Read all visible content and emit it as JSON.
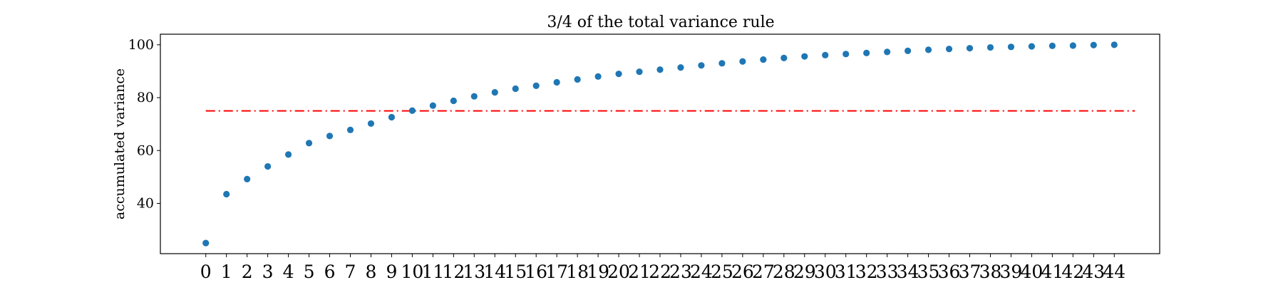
{
  "chart_data": {
    "type": "scatter",
    "title": "3/4 of the total variance rule",
    "xlabel": "",
    "ylabel": "accumulated variance",
    "x": [
      0,
      1,
      2,
      3,
      4,
      5,
      6,
      7,
      8,
      9,
      10,
      11,
      12,
      13,
      14,
      15,
      16,
      17,
      18,
      19,
      20,
      21,
      22,
      23,
      24,
      25,
      26,
      27,
      28,
      29,
      30,
      31,
      32,
      33,
      34,
      35,
      36,
      37,
      38,
      39,
      40,
      41,
      42,
      43,
      44
    ],
    "y": [
      25.0,
      43.5,
      49.2,
      54.0,
      58.5,
      62.8,
      65.5,
      67.8,
      70.2,
      72.6,
      75.1,
      77.0,
      78.8,
      80.5,
      82.0,
      83.4,
      84.5,
      85.8,
      86.9,
      88.0,
      89.0,
      89.8,
      90.6,
      91.4,
      92.2,
      93.0,
      93.7,
      94.4,
      95.0,
      95.6,
      96.1,
      96.5,
      96.9,
      97.3,
      97.7,
      98.1,
      98.4,
      98.7,
      99.0,
      99.2,
      99.4,
      99.6,
      99.7,
      99.9,
      100.0
    ],
    "xticks": [
      "0",
      "1",
      "2",
      "3",
      "4",
      "5",
      "6",
      "7",
      "8",
      "9",
      "10",
      "11",
      "12",
      "13",
      "14",
      "15",
      "16",
      "17",
      "18",
      "19",
      "20",
      "21",
      "22",
      "23",
      "24",
      "25",
      "26",
      "27",
      "28",
      "29",
      "30",
      "31",
      "32",
      "33",
      "34",
      "35",
      "36",
      "37",
      "38",
      "39",
      "40",
      "41",
      "42",
      "43",
      "44"
    ],
    "yticks": [
      40,
      60,
      80,
      100
    ],
    "xlim": [
      -2.2,
      46.2
    ],
    "ylim": [
      21.0,
      104.0
    ],
    "reference_line": {
      "y": 75,
      "x_start": 0,
      "x_end": 45,
      "style": "dash-dot",
      "color": "#ff0000"
    },
    "marker_color": "#1f77b4",
    "grid": false,
    "legend": "none"
  }
}
